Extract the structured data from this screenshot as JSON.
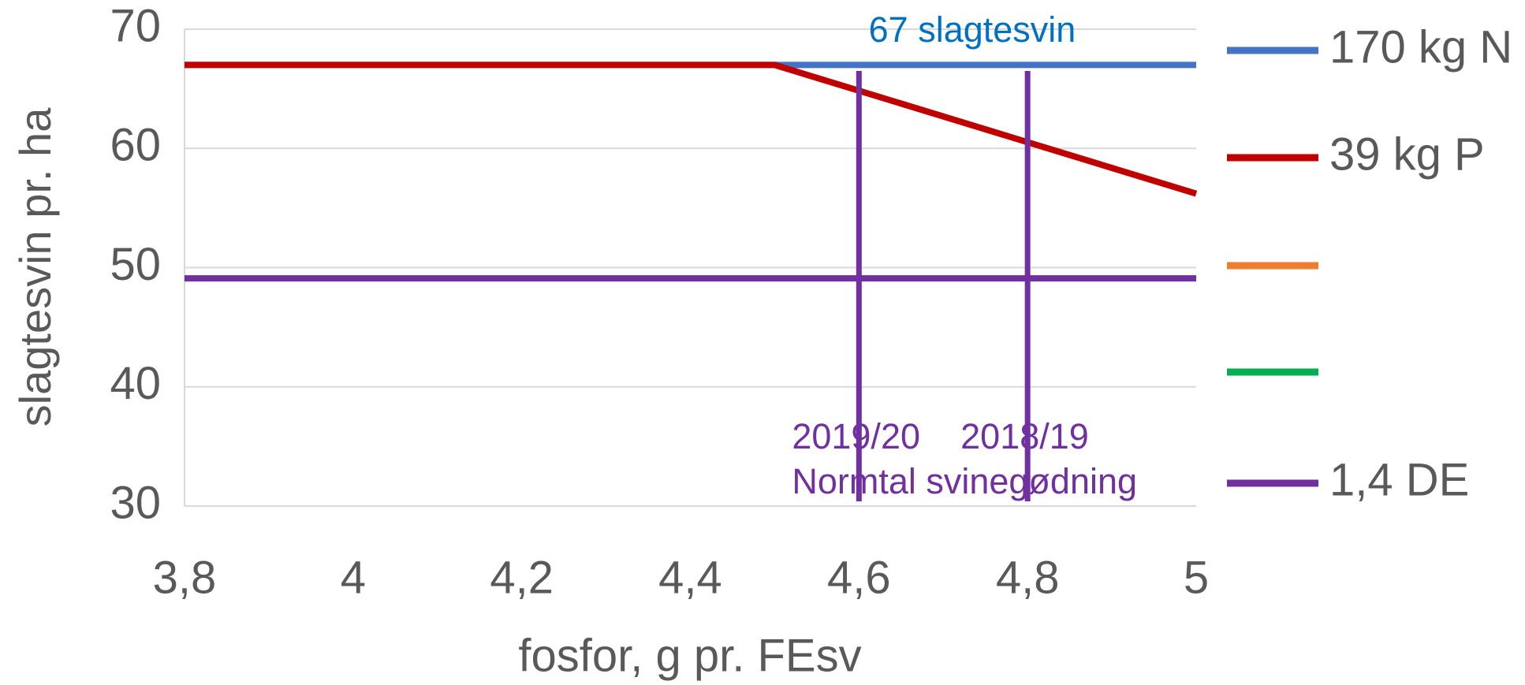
{
  "chart_data": {
    "type": "line",
    "y_label": "slagtesvin pr. ha",
    "x_label": "fosfor, g pr. FEsv",
    "x": [
      3.8,
      4.5,
      5
    ],
    "series": [
      {
        "name": "170 kg N",
        "color": "#4472c4",
        "values": [
          67,
          67,
          67
        ]
      },
      {
        "name": "39 kg P",
        "color": "#c00000",
        "values": [
          67,
          67,
          56.2
        ]
      },
      {
        "name": null,
        "color": "#ed7d31",
        "values": [
          null,
          null,
          null
        ]
      },
      {
        "name": null,
        "color": "#00b050",
        "values": [
          null,
          null,
          null
        ]
      },
      {
        "name": "1,4 DE",
        "color": "#7030a0",
        "values": [
          49.1,
          49.1,
          49.1
        ]
      }
    ],
    "vlines": [
      {
        "x": 4.6,
        "ymax": 66.5,
        "label": "2019/20",
        "color": "#7030a0"
      },
      {
        "x": 4.8,
        "ymax": 66.5,
        "label": "2018/19",
        "color": "#7030a0"
      }
    ],
    "annotations": [
      "67 slagtesvin",
      "Normtal svinegødning"
    ],
    "xlim": [
      3.8,
      5
    ],
    "xticks": [
      {
        "value": 3.8,
        "label": "3,8"
      },
      4,
      {
        "value": 4.2,
        "label": "4,2"
      },
      {
        "value": 4.4,
        "label": "4,4"
      },
      {
        "value": 4.6,
        "label": "4,6"
      },
      {
        "value": 4.8,
        "label": "4,8"
      },
      5
    ],
    "ylim": [
      30,
      70
    ],
    "yticks": [
      30,
      40,
      50,
      60,
      70
    ],
    "grid": true,
    "legend": "right"
  }
}
